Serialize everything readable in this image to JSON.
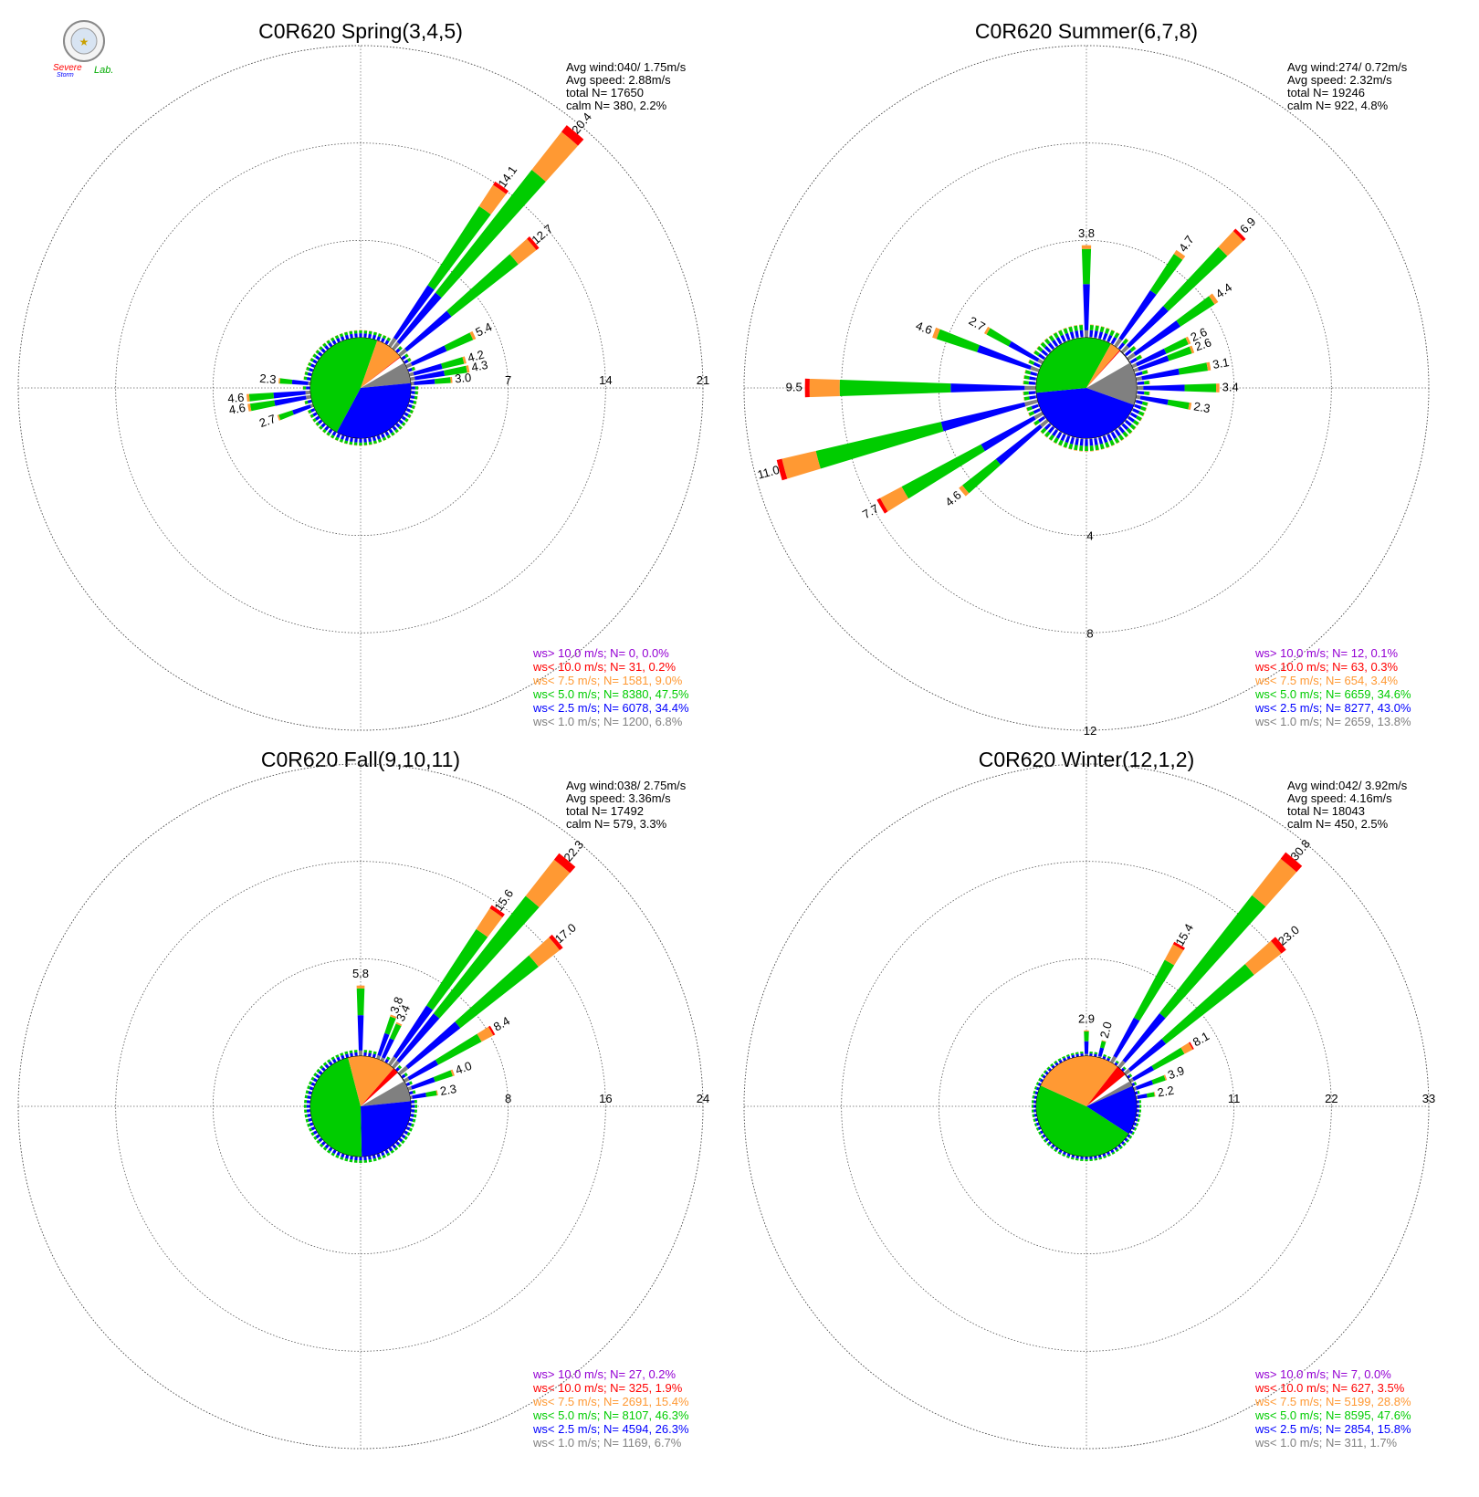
{
  "logo": {
    "text_top": "Severe",
    "text_mid": "Storm",
    "text_lab": "Lab."
  },
  "colors": {
    "gt10": "#9400d3",
    "lt10": "#ff0000",
    "lt75": "#ff9933",
    "lt5": "#00cc00",
    "lt25": "#0000ff",
    "lt1": "#808080"
  },
  "chart_data": [
    {
      "type": "polar-bar",
      "title": "C0R620 Spring(3,4,5)",
      "rings": [
        7,
        14,
        21
      ],
      "stats": [
        "Avg wind:040/ 1.75m/s",
        "Avg speed: 2.88m/s",
        "total N=       17650",
        "calm N=    380,   2.2%"
      ],
      "legend": [
        {
          "label": "ws> 10.0 m/s; N=      0,  0.0%",
          "color_key": "gt10"
        },
        {
          "label": "ws< 10.0 m/s; N=     31,  0.2%",
          "color_key": "lt10"
        },
        {
          "label": "ws<  7.5 m/s; N=  1581,  9.0%",
          "color_key": "lt75"
        },
        {
          "label": "ws<  5.0 m/s; N=  8380, 47.5%",
          "color_key": "lt5"
        },
        {
          "label": "ws<  2.5 m/s; N=  6078, 34.4%",
          "color_key": "lt25"
        },
        {
          "label": "ws<  1.0 m/s; N=  1200,  6.8%",
          "color_key": "lt1"
        }
      ],
      "labeled_bars": [
        {
          "dir": 35,
          "value": 14.1
        },
        {
          "dir": 40,
          "value": 20.4
        },
        {
          "dir": 50,
          "value": 12.7
        },
        {
          "dir": 65,
          "value": 5.4
        },
        {
          "dir": 75,
          "value": 4.2
        },
        {
          "dir": 80,
          "value": 4.3
        },
        {
          "dir": 85,
          "value": 3.0
        },
        {
          "dir": 275,
          "value": 2.3
        },
        {
          "dir": 265,
          "value": 4.6
        },
        {
          "dir": 260,
          "value": 4.6
        },
        {
          "dir": 250,
          "value": 2.7
        }
      ],
      "pie": {
        "lt1": 6.8,
        "lt25": 34.4,
        "lt5": 47.5,
        "lt75": 9.0,
        "lt10": 0.2
      }
    },
    {
      "type": "polar-bar",
      "title": "C0R620 Summer(6,7,8)",
      "rings": [
        4,
        8,
        12
      ],
      "stats": [
        "Avg wind:274/ 0.72m/s",
        "Avg speed: 2.32m/s",
        "total N=       19246",
        "calm N=    922,   4.8%"
      ],
      "legend": [
        {
          "label": "ws> 10.0 m/s; N=    12,  0.1%",
          "color_key": "gt10"
        },
        {
          "label": "ws< 10.0 m/s; N=    63,  0.3%",
          "color_key": "lt10"
        },
        {
          "label": "ws<  7.5 m/s; N=    654,  3.4%",
          "color_key": "lt75"
        },
        {
          "label": "ws<  5.0 m/s; N=  6659, 34.6%",
          "color_key": "lt5"
        },
        {
          "label": "ws<  2.5 m/s; N=  8277, 43.0%",
          "color_key": "lt25"
        },
        {
          "label": "ws<  1.0 m/s; N=  2659, 13.8%",
          "color_key": "lt1"
        }
      ],
      "labeled_bars": [
        {
          "dir": 0,
          "value": 3.8
        },
        {
          "dir": 35,
          "value": 4.7
        },
        {
          "dir": 45,
          "value": 6.9
        },
        {
          "dir": 55,
          "value": 4.4
        },
        {
          "dir": 65,
          "value": 2.6
        },
        {
          "dir": 70,
          "value": 2.6
        },
        {
          "dir": 80,
          "value": 3.1
        },
        {
          "dir": 90,
          "value": 3.4
        },
        {
          "dir": 100,
          "value": 2.3
        },
        {
          "dir": 300,
          "value": 2.7
        },
        {
          "dir": 290,
          "value": 4.6
        },
        {
          "dir": 270,
          "value": 9.5
        },
        {
          "dir": 255,
          "value": 11.0
        },
        {
          "dir": 240,
          "value": 7.7
        },
        {
          "dir": 230,
          "value": 4.6
        }
      ],
      "pie": {
        "lt1": 13.8,
        "lt25": 43.0,
        "lt5": 34.6,
        "lt75": 3.4,
        "lt10": 0.3
      }
    },
    {
      "type": "polar-bar",
      "title": "C0R620 Fall(9,10,11)",
      "rings": [
        8,
        16,
        24
      ],
      "stats": [
        "Avg wind:038/ 2.75m/s",
        "Avg speed: 3.36m/s",
        "total N=       17492",
        "calm N=    579,   3.3%"
      ],
      "legend": [
        {
          "label": "ws> 10.0 m/s; N=     27,  0.2%",
          "color_key": "gt10"
        },
        {
          "label": "ws< 10.0 m/s; N=    325,  1.9%",
          "color_key": "lt10"
        },
        {
          "label": "ws<  7.5 m/s; N=  2691, 15.4%",
          "color_key": "lt75"
        },
        {
          "label": "ws<  5.0 m/s; N=  8107, 46.3%",
          "color_key": "lt5"
        },
        {
          "label": "ws<  2.5 m/s; N=  4594, 26.3%",
          "color_key": "lt25"
        },
        {
          "label": "ws<  1.0 m/s; N=  1169,  6.7%",
          "color_key": "lt1"
        }
      ],
      "labeled_bars": [
        {
          "dir": 0,
          "value": 5.8
        },
        {
          "dir": 20,
          "value": 3.8
        },
        {
          "dir": 25,
          "value": 3.4
        },
        {
          "dir": 35,
          "value": 15.6
        },
        {
          "dir": 40,
          "value": 22.3
        },
        {
          "dir": 50,
          "value": 17.0
        },
        {
          "dir": 60,
          "value": 8.4
        },
        {
          "dir": 70,
          "value": 4.0
        },
        {
          "dir": 80,
          "value": 2.3
        }
      ],
      "pie": {
        "lt1": 6.7,
        "lt25": 26.3,
        "lt5": 46.3,
        "lt75": 15.4,
        "lt10": 1.9
      }
    },
    {
      "type": "polar-bar",
      "title": "C0R620 Winter(12,1,2)",
      "rings": [
        11,
        22,
        33
      ],
      "stats": [
        "Avg wind:042/ 3.92m/s",
        "Avg speed: 4.16m/s",
        "total N=       18043",
        "calm N=    450,   2.5%"
      ],
      "legend": [
        {
          "label": "ws> 10.0 m/s; N=      7,  0.0%",
          "color_key": "gt10"
        },
        {
          "label": "ws< 10.0 m/s; N=    627,  3.5%",
          "color_key": "lt10"
        },
        {
          "label": "ws<  7.5 m/s; N=  5199, 28.8%",
          "color_key": "lt75"
        },
        {
          "label": "ws<  5.0 m/s; N=  8595, 47.6%",
          "color_key": "lt5"
        },
        {
          "label": "ws<  2.5 m/s; N=  2854, 15.8%",
          "color_key": "lt25"
        },
        {
          "label": "ws<  1.0 m/s; N=    311,  1.7%",
          "color_key": "lt1"
        }
      ],
      "labeled_bars": [
        {
          "dir": 0,
          "value": 2.9
        },
        {
          "dir": 15,
          "value": 2.0
        },
        {
          "dir": 30,
          "value": 15.4
        },
        {
          "dir": 40,
          "value": 30.8
        },
        {
          "dir": 50,
          "value": 23.0
        },
        {
          "dir": 60,
          "value": 8.1
        },
        {
          "dir": 70,
          "value": 3.9
        },
        {
          "dir": 80,
          "value": 2.2
        }
      ],
      "pie": {
        "lt1": 1.7,
        "lt25": 15.8,
        "lt5": 47.6,
        "lt75": 28.8,
        "lt10": 3.5
      }
    }
  ]
}
